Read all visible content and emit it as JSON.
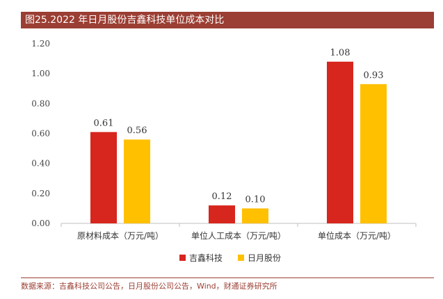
{
  "header": {
    "title": "图25.2022 年日月股份吉鑫科技单位成本对比"
  },
  "chart_data": {
    "type": "bar",
    "categories": [
      "原材料成本（万元/吨）",
      "单位人工成本（万元/吨）",
      "单位成本（万元/吨）"
    ],
    "series": [
      {
        "name": "吉鑫科技",
        "values": [
          0.61,
          0.12,
          1.08
        ],
        "color": "#d7261e"
      },
      {
        "name": "日月股份",
        "values": [
          0.56,
          0.1,
          0.93
        ],
        "color": "#ffc000"
      }
    ],
    "y_ticks": [
      "0.00",
      "0.20",
      "0.40",
      "0.60",
      "0.80",
      "1.00",
      "1.20"
    ],
    "ylim": [
      0,
      1.2
    ],
    "grid": false,
    "legend_position": "bottom"
  },
  "footer": {
    "source": "数据来源：吉鑫科技公司公告，日月股份公司公告，Wind，财通证券研究所"
  }
}
